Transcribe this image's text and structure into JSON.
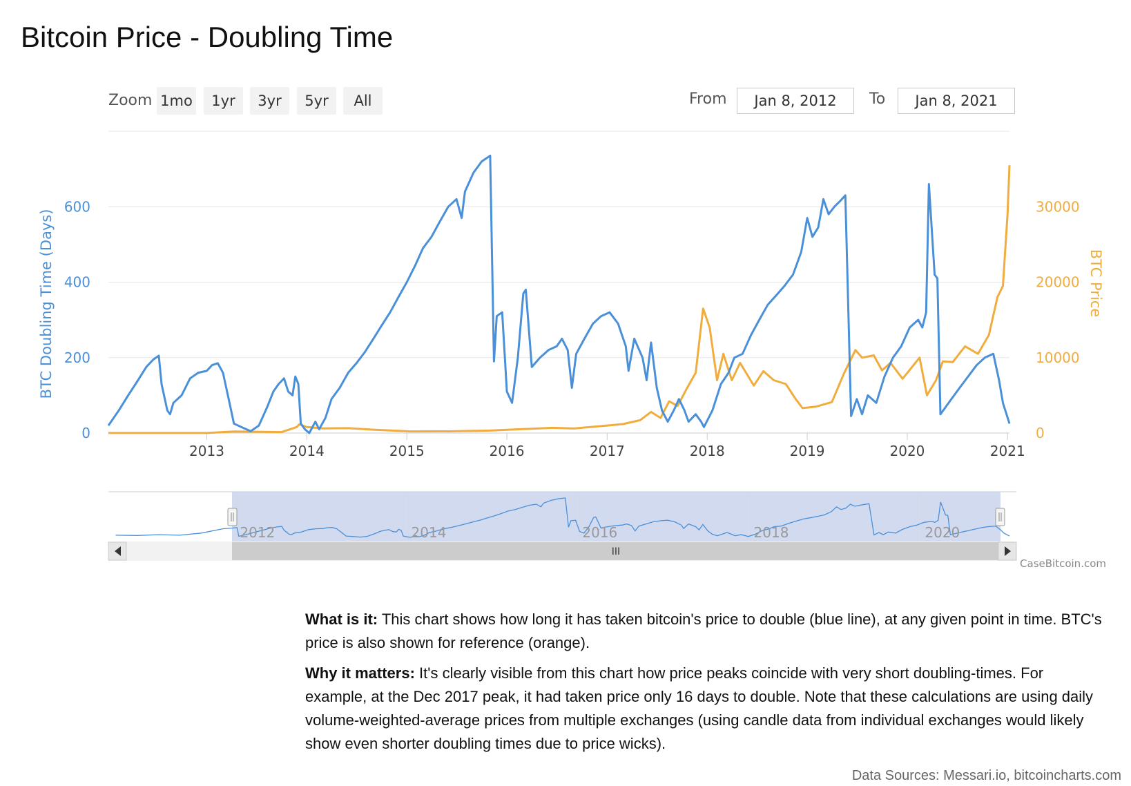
{
  "title": "Bitcoin Price - Doubling Time",
  "zoom": {
    "label": "Zoom",
    "buttons": [
      "1mo",
      "1yr",
      "3yr",
      "5yr",
      "All"
    ]
  },
  "range": {
    "from_label": "From",
    "from_value": "Jan 8, 2012",
    "to_label": "To",
    "to_value": "Jan 8, 2021"
  },
  "colors": {
    "doubling": "#4a90d9",
    "price": "#f0ad3e",
    "grid": "#e6e6e6",
    "navigator_mask": "#c9d3ec"
  },
  "chart_data": {
    "type": "line",
    "x_ticks": [
      "2013",
      "2014",
      "2015",
      "2016",
      "2017",
      "2018",
      "2019",
      "2020",
      "2021"
    ],
    "y_left": {
      "label": "BTC Doubling Time (Days)",
      "ticks": [
        0,
        200,
        400,
        600
      ],
      "range": [
        0,
        800
      ]
    },
    "y_right": {
      "label": "BTC Price",
      "ticks": [
        0,
        10000,
        20000,
        30000
      ],
      "range": [
        0,
        40000
      ]
    },
    "grid": true,
    "series": [
      {
        "name": "BTC Doubling Time (Days)",
        "axis": "left",
        "points": [
          [
            "2012-01-08",
            20
          ],
          [
            "2012-02-15",
            60
          ],
          [
            "2012-03-20",
            100
          ],
          [
            "2012-04-25",
            140
          ],
          [
            "2012-05-25",
            175
          ],
          [
            "2012-06-20",
            195
          ],
          [
            "2012-07-10",
            205
          ],
          [
            "2012-07-20",
            130
          ],
          [
            "2012-08-10",
            60
          ],
          [
            "2012-08-20",
            50
          ],
          [
            "2012-09-01",
            80
          ],
          [
            "2012-10-01",
            100
          ],
          [
            "2012-11-01",
            145
          ],
          [
            "2012-12-01",
            160
          ],
          [
            "2013-01-01",
            165
          ],
          [
            "2013-01-20",
            180
          ],
          [
            "2013-02-10",
            185
          ],
          [
            "2013-03-01",
            160
          ],
          [
            "2013-03-25",
            80
          ],
          [
            "2013-04-10",
            25
          ],
          [
            "2013-05-10",
            15
          ],
          [
            "2013-06-10",
            5
          ],
          [
            "2013-07-10",
            20
          ],
          [
            "2013-08-10",
            70
          ],
          [
            "2013-09-01",
            110
          ],
          [
            "2013-09-20",
            130
          ],
          [
            "2013-10-10",
            145
          ],
          [
            "2013-10-25",
            110
          ],
          [
            "2013-11-10",
            100
          ],
          [
            "2013-11-20",
            150
          ],
          [
            "2013-12-01",
            130
          ],
          [
            "2013-12-10",
            25
          ],
          [
            "2013-12-25",
            10
          ],
          [
            "2014-01-10",
            0
          ],
          [
            "2014-02-01",
            30
          ],
          [
            "2014-02-15",
            10
          ],
          [
            "2014-03-10",
            40
          ],
          [
            "2014-04-01",
            90
          ],
          [
            "2014-05-01",
            120
          ],
          [
            "2014-06-01",
            160
          ],
          [
            "2014-07-01",
            185
          ],
          [
            "2014-08-01",
            215
          ],
          [
            "2014-09-01",
            250
          ],
          [
            "2014-10-01",
            285
          ],
          [
            "2014-11-01",
            320
          ],
          [
            "2014-12-01",
            360
          ],
          [
            "2015-01-01",
            400
          ],
          [
            "2015-02-01",
            445
          ],
          [
            "2015-03-01",
            490
          ],
          [
            "2015-04-01",
            520
          ],
          [
            "2015-05-01",
            560
          ],
          [
            "2015-06-01",
            600
          ],
          [
            "2015-07-01",
            620
          ],
          [
            "2015-07-20",
            570
          ],
          [
            "2015-08-01",
            640
          ],
          [
            "2015-09-01",
            690
          ],
          [
            "2015-10-01",
            720
          ],
          [
            "2015-11-01",
            735
          ],
          [
            "2015-11-15",
            190
          ],
          [
            "2015-11-25",
            310
          ],
          [
            "2015-12-15",
            320
          ],
          [
            "2016-01-01",
            110
          ],
          [
            "2016-01-20",
            80
          ],
          [
            "2016-02-10",
            200
          ],
          [
            "2016-03-01",
            370
          ],
          [
            "2016-03-10",
            380
          ],
          [
            "2016-04-01",
            175
          ],
          [
            "2016-05-01",
            200
          ],
          [
            "2016-06-01",
            220
          ],
          [
            "2016-07-01",
            230
          ],
          [
            "2016-07-20",
            250
          ],
          [
            "2016-08-10",
            220
          ],
          [
            "2016-08-25",
            120
          ],
          [
            "2016-09-10",
            210
          ],
          [
            "2016-10-10",
            250
          ],
          [
            "2016-11-10",
            290
          ],
          [
            "2016-12-10",
            310
          ],
          [
            "2017-01-10",
            320
          ],
          [
            "2017-02-10",
            290
          ],
          [
            "2017-03-10",
            230
          ],
          [
            "2017-03-20",
            165
          ],
          [
            "2017-04-10",
            250
          ],
          [
            "2017-05-10",
            200
          ],
          [
            "2017-05-25",
            140
          ],
          [
            "2017-06-10",
            240
          ],
          [
            "2017-07-01",
            120
          ],
          [
            "2017-07-20",
            60
          ],
          [
            "2017-08-10",
            30
          ],
          [
            "2017-09-01",
            60
          ],
          [
            "2017-09-20",
            90
          ],
          [
            "2017-10-10",
            60
          ],
          [
            "2017-10-25",
            30
          ],
          [
            "2017-11-20",
            50
          ],
          [
            "2017-12-10",
            30
          ],
          [
            "2017-12-20",
            16
          ],
          [
            "2018-01-20",
            60
          ],
          [
            "2018-02-20",
            130
          ],
          [
            "2018-03-20",
            160
          ],
          [
            "2018-04-10",
            200
          ],
          [
            "2018-05-10",
            210
          ],
          [
            "2018-06-10",
            260
          ],
          [
            "2018-07-10",
            300
          ],
          [
            "2018-08-10",
            340
          ],
          [
            "2018-09-10",
            365
          ],
          [
            "2018-10-10",
            390
          ],
          [
            "2018-11-10",
            420
          ],
          [
            "2018-12-10",
            480
          ],
          [
            "2019-01-01",
            570
          ],
          [
            "2019-01-20",
            520
          ],
          [
            "2019-02-10",
            545
          ],
          [
            "2019-03-01",
            620
          ],
          [
            "2019-03-20",
            580
          ],
          [
            "2019-04-10",
            600
          ],
          [
            "2019-05-01",
            615
          ],
          [
            "2019-05-20",
            630
          ],
          [
            "2019-06-10",
            45
          ],
          [
            "2019-07-01",
            90
          ],
          [
            "2019-07-20",
            50
          ],
          [
            "2019-08-10",
            100
          ],
          [
            "2019-09-10",
            80
          ],
          [
            "2019-10-10",
            150
          ],
          [
            "2019-11-10",
            200
          ],
          [
            "2019-12-10",
            230
          ],
          [
            "2020-01-10",
            280
          ],
          [
            "2020-02-10",
            300
          ],
          [
            "2020-02-25",
            280
          ],
          [
            "2020-03-10",
            320
          ],
          [
            "2020-03-20",
            660
          ],
          [
            "2020-04-10",
            420
          ],
          [
            "2020-04-20",
            410
          ],
          [
            "2020-05-01",
            50
          ],
          [
            "2020-06-10",
            90
          ],
          [
            "2020-07-10",
            120
          ],
          [
            "2020-08-10",
            150
          ],
          [
            "2020-09-10",
            180
          ],
          [
            "2020-10-10",
            200
          ],
          [
            "2020-11-10",
            210
          ],
          [
            "2020-12-01",
            140
          ],
          [
            "2020-12-15",
            80
          ],
          [
            "2021-01-08",
            25
          ]
        ]
      },
      {
        "name": "BTC Price",
        "axis": "right",
        "points": [
          [
            "2012-01-08",
            7
          ],
          [
            "2013-01-01",
            13
          ],
          [
            "2013-04-10",
            200
          ],
          [
            "2013-10-01",
            130
          ],
          [
            "2013-11-25",
            800
          ],
          [
            "2013-12-05",
            1150
          ],
          [
            "2014-01-01",
            800
          ],
          [
            "2014-03-01",
            620
          ],
          [
            "2014-06-01",
            650
          ],
          [
            "2014-09-01",
            450
          ],
          [
            "2015-01-15",
            220
          ],
          [
            "2015-06-01",
            230
          ],
          [
            "2015-11-01",
            330
          ],
          [
            "2016-01-01",
            430
          ],
          [
            "2016-06-15",
            700
          ],
          [
            "2016-09-01",
            600
          ],
          [
            "2017-01-01",
            1000
          ],
          [
            "2017-03-01",
            1200
          ],
          [
            "2017-05-01",
            1700
          ],
          [
            "2017-06-10",
            2800
          ],
          [
            "2017-07-15",
            2000
          ],
          [
            "2017-08-15",
            4200
          ],
          [
            "2017-09-15",
            3600
          ],
          [
            "2017-10-20",
            6000
          ],
          [
            "2017-11-20",
            8000
          ],
          [
            "2017-12-17",
            16500
          ],
          [
            "2018-01-10",
            14000
          ],
          [
            "2018-02-06",
            7000
          ],
          [
            "2018-03-01",
            10500
          ],
          [
            "2018-04-01",
            7000
          ],
          [
            "2018-05-01",
            9300
          ],
          [
            "2018-06-20",
            6300
          ],
          [
            "2018-07-25",
            8200
          ],
          [
            "2018-09-01",
            7000
          ],
          [
            "2018-10-15",
            6500
          ],
          [
            "2018-11-20",
            4500
          ],
          [
            "2018-12-15",
            3300
          ],
          [
            "2019-02-01",
            3500
          ],
          [
            "2019-04-01",
            4100
          ],
          [
            "2019-05-15",
            7900
          ],
          [
            "2019-06-26",
            11000
          ],
          [
            "2019-07-20",
            10000
          ],
          [
            "2019-09-01",
            10300
          ],
          [
            "2019-10-01",
            8300
          ],
          [
            "2019-11-01",
            9300
          ],
          [
            "2019-12-15",
            7200
          ],
          [
            "2020-02-15",
            10000
          ],
          [
            "2020-03-13",
            5000
          ],
          [
            "2020-04-15",
            7000
          ],
          [
            "2020-05-10",
            9500
          ],
          [
            "2020-06-15",
            9400
          ],
          [
            "2020-07-30",
            11500
          ],
          [
            "2020-09-15",
            10500
          ],
          [
            "2020-10-25",
            13000
          ],
          [
            "2020-11-25",
            18000
          ],
          [
            "2020-12-15",
            19500
          ],
          [
            "2021-01-01",
            29000
          ],
          [
            "2021-01-08",
            35500
          ]
        ]
      }
    ]
  },
  "navigator": {
    "labels": [
      "2012",
      "2014",
      "2016",
      "2018",
      "2020"
    ],
    "scroll_icon": "III",
    "left_arrow": "left-arrow-icon",
    "right_arrow": "right-arrow-icon"
  },
  "credit": "CaseBitcoin.com",
  "description": {
    "what_label": "What is it:",
    "what_text": " This chart shows how long it has taken bitcoin's price to double (blue line), at any given point in time. BTC's price is also shown for reference (orange).",
    "why_label": "Why it matters:",
    "why_text": " It's clearly visible from this chart how price peaks coincide with very short doubling-times. For example, at the Dec 2017 peak, it had taken price only 16 days to double. Note that these calculations are using daily volume-weighted-average prices from multiple exchanges (using candle data from individual exchanges would likely show even shorter doubling times due to price wicks)."
  },
  "sources": {
    "label": "Data Sources:",
    "text": " Messari.io, bitcoincharts.com"
  }
}
